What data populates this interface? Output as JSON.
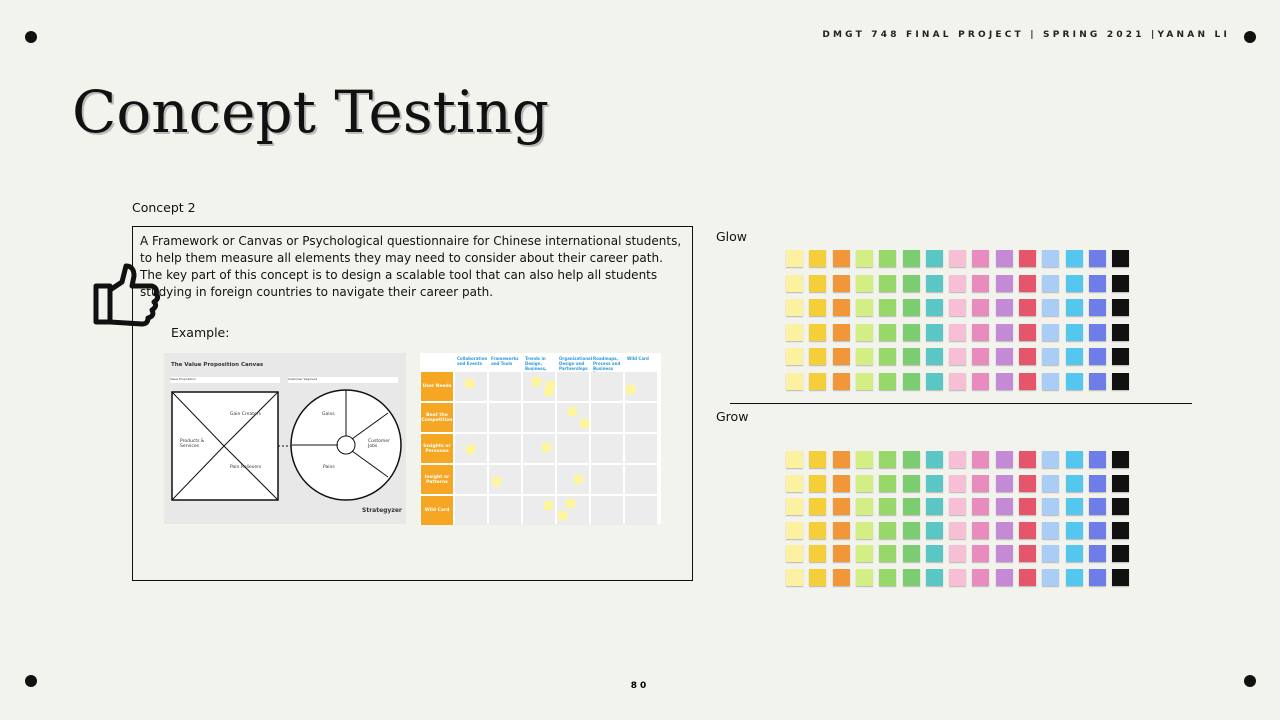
{
  "header_text": "DMGT 748 FINAL PROJECT | SPRING 2021 |YANAN LI",
  "title": "Concept Testing",
  "concept": {
    "label": "Concept 2",
    "description": [
      "A Framework or Canvas or Psychological questionnaire for Chinese international students,",
      "to help them measure all elements they may need to consider about their career path.",
      "The key part of this concept is to design a scalable tool that can also help all students",
      "studying in foreign countries to navigate their career path."
    ],
    "example_label": "Example:"
  },
  "canvas": {
    "title": "The Value Proposition Canvas",
    "fields": [
      "Value Proposition",
      "Customer Segment"
    ],
    "labels": [
      "Gain Creators",
      "Products & Services",
      "Pain Relievers",
      "Gains",
      "Customer Jobs",
      "Pains"
    ],
    "brand": "Strategyzer"
  },
  "matrix": {
    "columns": [
      "Collaboration and Events",
      "Frameworks and Tools",
      "Trends in Design, Business, and Technology",
      "Organizational Design and Partnerships",
      "Roadmaps, Process and Business Plans",
      "Wild Card"
    ],
    "rows": [
      "User Needs",
      "Beat the Competition",
      "Insights or Personas",
      "Insight or Patterns",
      "Wild Card"
    ]
  },
  "boards": [
    {
      "label": "Glow"
    },
    {
      "label": "Grow"
    }
  ],
  "page_number": "80"
}
